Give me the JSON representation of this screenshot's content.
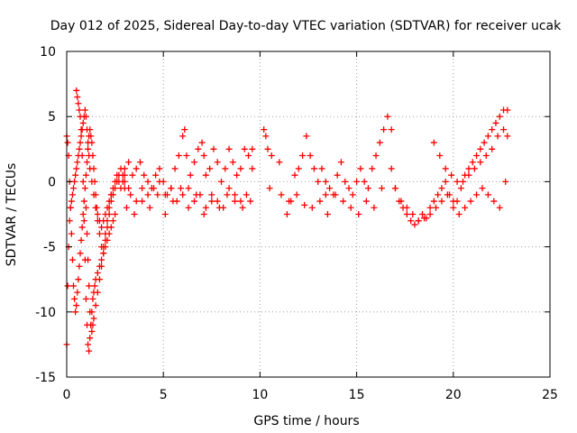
{
  "chart_data": {
    "type": "scatter",
    "title": "Day 012 of 2025, Sidereal Day-to-day VTEC variation (SDTVAR) for receiver ucak",
    "xlabel": "GPS time / hours",
    "ylabel": "SDTVAR / TECUs",
    "xlim": [
      0,
      25
    ],
    "ylim": [
      -15,
      10
    ],
    "xticks": [
      0,
      5,
      10,
      15,
      20,
      25
    ],
    "yticks": [
      -15,
      -10,
      -5,
      0,
      5,
      10
    ],
    "xtick_labels": [
      "0",
      "5",
      "10",
      "15",
      "20",
      "25"
    ],
    "ytick_labels": [
      "-15",
      "-10",
      "-5",
      "0",
      "5",
      "10"
    ],
    "grid": true,
    "marker": "+",
    "color": "#ff0000",
    "series": [
      {
        "name": "SDTVAR",
        "x": [
          0.0,
          0.05,
          0.1,
          0.15,
          0.2,
          0.25,
          0.3,
          0.35,
          0.4,
          0.45,
          0.5,
          0.55,
          0.6,
          0.65,
          0.7,
          0.75,
          0.8,
          0.85,
          0.9,
          0.95,
          1.0,
          1.05,
          1.1,
          1.15,
          1.2,
          1.3,
          1.4,
          1.5,
          1.6,
          1.7,
          1.8,
          1.9,
          2.0,
          2.1,
          2.2,
          2.3,
          2.4,
          2.5,
          2.6,
          2.7,
          2.8,
          2.9,
          3.0,
          0.0,
          0.05,
          0.1,
          0.15,
          0.2,
          0.25,
          0.3,
          0.35,
          0.4,
          0.45,
          0.5,
          0.55,
          0.6,
          0.65,
          0.7,
          0.75,
          0.8,
          0.85,
          0.9,
          0.95,
          1.0,
          1.05,
          1.1,
          1.15,
          1.2,
          1.25,
          1.3,
          1.35,
          1.4,
          1.45,
          1.5,
          1.55,
          1.6,
          1.7,
          1.8,
          1.9,
          2.0,
          2.1,
          2.2,
          2.3,
          2.4,
          2.5,
          0.5,
          0.55,
          0.6,
          0.65,
          0.7,
          0.75,
          0.8,
          0.85,
          0.9,
          0.95,
          1.0,
          1.05,
          1.1,
          1.15,
          1.2,
          1.25,
          1.3,
          1.35,
          1.4,
          1.45,
          1.5,
          1.6,
          1.7,
          1.8,
          1.9,
          2.0,
          2.1,
          2.2,
          2.3,
          1.0,
          1.05,
          1.1,
          1.15,
          1.2,
          1.25,
          1.3,
          1.35,
          1.4,
          1.5,
          1.6,
          1.7,
          1.8,
          1.9,
          2.0,
          2.1,
          2.2,
          2.3,
          2.4,
          2.5,
          2.6,
          2.7,
          2.8,
          2.9,
          3.0,
          3.2,
          3.0,
          3.2,
          3.4,
          3.6,
          3.8,
          4.0,
          4.2,
          4.4,
          4.6,
          4.8,
          5.0,
          5.2,
          5.4,
          5.6,
          5.8,
          6.0,
          6.1,
          6.2,
          6.4,
          6.6,
          6.8,
          7.0,
          7.1,
          7.2,
          7.4,
          7.6,
          7.8,
          8.0,
          8.2,
          8.4,
          8.6,
          8.8,
          9.0,
          9.2,
          9.4,
          9.6,
          3.0,
          3.3,
          3.6,
          3.9,
          4.2,
          4.5,
          4.8,
          5.1,
          5.4,
          5.7,
          6.0,
          6.3,
          6.6,
          6.9,
          7.2,
          7.5,
          7.8,
          8.1,
          8.4,
          8.7,
          9.0,
          9.3,
          3.1,
          3.5,
          3.9,
          4.3,
          4.7,
          5.1,
          5.5,
          5.9,
          6.3,
          6.7,
          7.1,
          7.5,
          7.9,
          8.3,
          8.7,
          9.1,
          9.5,
          10.2,
          10.3,
          10.4,
          10.6,
          11.0,
          11.1,
          11.4,
          11.6,
          11.8,
          12.0,
          12.2,
          12.4,
          12.6,
          12.8,
          13.0,
          13.2,
          13.4,
          13.6,
          13.8,
          14.0,
          14.2,
          14.4,
          14.6,
          14.8,
          15.0,
          15.2,
          15.4,
          15.6,
          15.8,
          16.0,
          16.2,
          16.4,
          16.6,
          16.8,
          11.5,
          11.9,
          12.3,
          12.7,
          13.1,
          13.5,
          13.9,
          14.3,
          14.7,
          15.1,
          15.5,
          15.9,
          16.3,
          16.8,
          17.0,
          17.2,
          17.4,
          17.6,
          17.8,
          18.0,
          18.2,
          18.4,
          18.6,
          18.8,
          19.0,
          19.2,
          19.4,
          19.6,
          19.8,
          20.0,
          20.2,
          20.4,
          20.6,
          20.8,
          21.0,
          21.2,
          21.4,
          21.6,
          21.8,
          22.0,
          22.2,
          22.4,
          22.6,
          22.8,
          17.0,
          17.3,
          17.6,
          17.9,
          18.2,
          18.5,
          18.8,
          19.1,
          19.4,
          19.7,
          20.0,
          20.3,
          20.6,
          20.9,
          21.2,
          21.5,
          21.8,
          22.1,
          22.4,
          22.7,
          19.0,
          19.3,
          19.6,
          19.9,
          20.2,
          20.5,
          20.8,
          21.1,
          21.4,
          21.7,
          22.0,
          22.3,
          22.6,
          22.8,
          9.6,
          10.5,
          13.4
        ],
        "y": [
          -12.5,
          -8.0,
          -5.0,
          -3.0,
          -2.0,
          -1.5,
          -1.0,
          -0.5,
          0.0,
          0.5,
          1.0,
          1.5,
          2.0,
          2.5,
          3.0,
          3.5,
          4.0,
          4.5,
          5.0,
          5.5,
          5.0,
          4.0,
          3.0,
          2.0,
          1.0,
          0.0,
          -1.0,
          -2.0,
          -2.5,
          -3.0,
          -3.5,
          -3.0,
          -2.5,
          -2.0,
          -1.5,
          -1.0,
          -0.5,
          0.0,
          0.5,
          0.0,
          -0.5,
          0.0,
          0.5,
          3.5,
          3.0,
          2.0,
          0.0,
          -2.0,
          -4.0,
          -6.0,
          -8.0,
          -9.0,
          -10.0,
          -9.5,
          -8.5,
          -7.5,
          -6.5,
          -5.5,
          -4.5,
          -3.5,
          -2.5,
          -1.5,
          -0.5,
          0.5,
          1.5,
          2.5,
          3.5,
          4.0,
          3.5,
          3.0,
          2.0,
          1.0,
          0.0,
          -1.0,
          -2.0,
          -3.0,
          -4.0,
          -5.0,
          -5.5,
          -5.0,
          -4.5,
          -4.0,
          -3.5,
          -3.0,
          -2.5,
          7.0,
          6.5,
          6.0,
          5.5,
          5.0,
          4.0,
          2.0,
          0.0,
          -3.0,
          -6.0,
          -9.0,
          -11.0,
          -12.5,
          -13.0,
          -12.0,
          -11.0,
          -10.0,
          -9.0,
          -8.5,
          -8.0,
          -7.5,
          -7.0,
          -6.5,
          -6.0,
          -5.0,
          -4.0,
          -3.0,
          -2.0,
          -1.0,
          -2.0,
          -4.0,
          -6.0,
          -8.0,
          -10.0,
          -11.0,
          -11.5,
          -11.0,
          -10.5,
          -9.5,
          -8.5,
          -7.5,
          -6.5,
          -5.5,
          -4.5,
          -3.5,
          -2.5,
          -1.5,
          -1.0,
          -0.5,
          0.0,
          0.5,
          1.0,
          0.5,
          0.0,
          -0.5,
          1.0,
          1.5,
          0.5,
          1.0,
          1.5,
          0.5,
          0.0,
          -0.5,
          0.5,
          1.0,
          0.0,
          -1.0,
          -0.5,
          1.0,
          2.0,
          3.5,
          4.0,
          2.0,
          0.5,
          1.5,
          2.5,
          3.0,
          2.0,
          0.5,
          1.0,
          2.5,
          1.5,
          0.0,
          1.0,
          2.5,
          1.5,
          0.5,
          1.0,
          2.5,
          2.0,
          2.5,
          -0.5,
          -1.0,
          -1.5,
          -0.5,
          -1.0,
          -0.5,
          0.0,
          -1.0,
          -0.5,
          -1.5,
          -1.0,
          -0.5,
          -1.5,
          -1.0,
          -2.0,
          -1.0,
          -1.5,
          -2.0,
          -0.5,
          -1.0,
          -1.5,
          -1.0,
          -2.0,
          -2.5,
          -1.5,
          -2.0,
          -1.0,
          -2.5,
          -1.5,
          -0.5,
          -2.0,
          -1.0,
          -2.5,
          -1.5,
          -2.0,
          -1.0,
          -1.5,
          -2.0,
          -1.5,
          4.0,
          3.5,
          2.5,
          2.0,
          1.5,
          -1.0,
          -2.5,
          -1.5,
          0.5,
          1.0,
          2.0,
          3.5,
          2.0,
          1.0,
          0.0,
          1.0,
          0.0,
          -0.5,
          -1.0,
          0.5,
          1.5,
          0.0,
          -0.5,
          -1.0,
          0.0,
          1.0,
          0.0,
          -0.5,
          1.0,
          2.0,
          3.0,
          4.0,
          5.0,
          4.0,
          -1.5,
          -1.0,
          -1.8,
          -2.0,
          -1.5,
          -2.5,
          -1.0,
          -1.5,
          -2.0,
          -2.5,
          -1.5,
          -2.0,
          -0.5,
          1.0,
          -0.5,
          -1.5,
          -2.0,
          -2.5,
          -3.0,
          -3.3,
          -3.0,
          -2.5,
          -2.8,
          -2.0,
          -1.5,
          -1.0,
          -0.5,
          0.0,
          -1.0,
          -2.0,
          -1.5,
          -0.5,
          0.5,
          1.0,
          1.5,
          2.0,
          2.5,
          3.0,
          3.5,
          4.0,
          4.5,
          5.0,
          5.5,
          5.5,
          -0.5,
          -1.5,
          -2.0,
          -2.5,
          -3.0,
          -2.8,
          -2.5,
          -2.0,
          -1.5,
          -1.0,
          -1.5,
          -2.5,
          -2.0,
          -1.5,
          -1.0,
          -0.5,
          -1.0,
          -1.5,
          -2.0,
          0.0,
          3.0,
          2.0,
          1.0,
          0.5,
          0.0,
          0.0,
          0.5,
          1.0,
          1.5,
          2.0,
          2.5,
          3.5,
          4.0,
          3.5,
          1.0,
          -0.5,
          -1.0
        ]
      }
    ]
  }
}
